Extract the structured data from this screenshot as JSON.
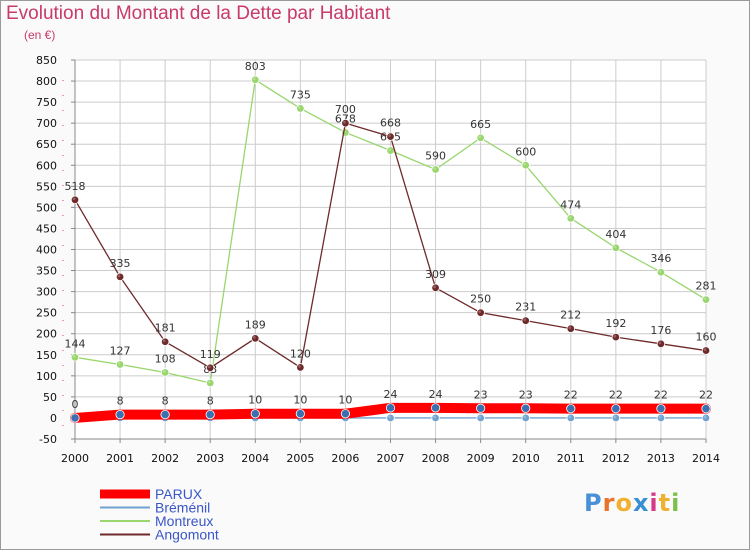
{
  "header": {
    "title": "Evolution du Montant de la Dette par Habitant",
    "subtitle": "(en €)"
  },
  "logo": {
    "text": "Proxiti"
  },
  "colors": {
    "title": "#c83a6a",
    "grid": "#cccccc",
    "axis": "#888888"
  },
  "chart_data": {
    "type": "line",
    "title": "Evolution du Montant de la Dette par Habitant",
    "subtitle": "(en €)",
    "xlabel": "",
    "ylabel": "",
    "x": [
      2000,
      2001,
      2002,
      2003,
      2004,
      2005,
      2006,
      2007,
      2008,
      2009,
      2010,
      2011,
      2012,
      2013,
      2014
    ],
    "ylim": [
      -50,
      850
    ],
    "yticks": [
      -50,
      0,
      50,
      100,
      150,
      200,
      250,
      300,
      350,
      400,
      450,
      500,
      550,
      600,
      650,
      700,
      750,
      800,
      850
    ],
    "grid": true,
    "legend_position": "bottom-left",
    "series": [
      {
        "name": "PARUX",
        "color": "#ff0000",
        "values": [
          0,
          8,
          8,
          8,
          10,
          10,
          10,
          24,
          24,
          23,
          23,
          22,
          22,
          22,
          22
        ]
      },
      {
        "name": "Bréménil",
        "color": "#6fa2cf",
        "values": [
          0,
          0,
          0,
          0,
          0,
          0,
          0,
          0,
          0,
          0,
          0,
          0,
          0,
          0,
          0
        ]
      },
      {
        "name": "Montreux",
        "color": "#99d66e",
        "values": [
          144,
          127,
          108,
          83,
          803,
          735,
          678,
          635,
          590,
          665,
          600,
          474,
          404,
          346,
          281
        ]
      },
      {
        "name": "Angomont",
        "color": "#6e2a2a",
        "values": [
          518,
          335,
          181,
          119,
          189,
          120,
          700,
          668,
          309,
          250,
          231,
          212,
          192,
          176,
          160
        ]
      }
    ]
  }
}
